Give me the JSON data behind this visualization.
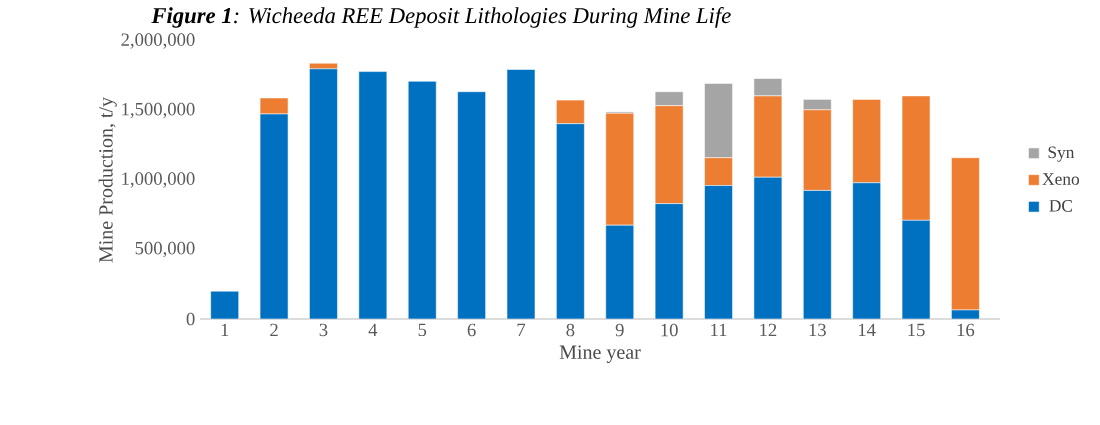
{
  "chart_data": {
    "type": "bar",
    "stacked": true,
    "title": "**Figure 1**: Wicheeda REE Deposit Lithologies During Mine Life",
    "xlabel": "Mine year",
    "ylabel": "Mine Production, t/y",
    "categories": [
      "1",
      "2",
      "3",
      "4",
      "5",
      "6",
      "7",
      "8",
      "9",
      "10",
      "11",
      "12",
      "13",
      "14",
      "15",
      "16"
    ],
    "ylim": [
      0,
      2000000
    ],
    "yticks": [
      0,
      {
        "value": 500000,
        "label": "500,000"
      },
      {
        "value": 1000000,
        "label": "1,000,000"
      },
      {
        "value": 1500000,
        "label": "1,500,000"
      },
      {
        "value": 2000000,
        "label": "2,000,000"
      }
    ],
    "legend": "right",
    "grid": false,
    "series": [
      {
        "name": "DC",
        "color": "#0070c0",
        "values": [
          200000,
          1475000,
          1800000,
          1780000,
          1710000,
          1635000,
          1795000,
          1405000,
          675000,
          830000,
          960000,
          1020000,
          925000,
          980000,
          710000,
          65000
        ]
      },
      {
        "name": "Xeno",
        "color": "#ed7d31",
        "values": [
          0,
          115000,
          40000,
          null,
          null,
          null,
          0,
          170000,
          805000,
          705000,
          200000,
          585000,
          580000,
          600000,
          895000,
          1095000
        ]
      },
      {
        "name": "Syn",
        "color": "#a5a5a5",
        "values": [
          0,
          0,
          0,
          0,
          0,
          0,
          0,
          0,
          10000,
          100000,
          535000,
          125000,
          75000,
          0,
          0,
          0
        ]
      }
    ]
  }
}
